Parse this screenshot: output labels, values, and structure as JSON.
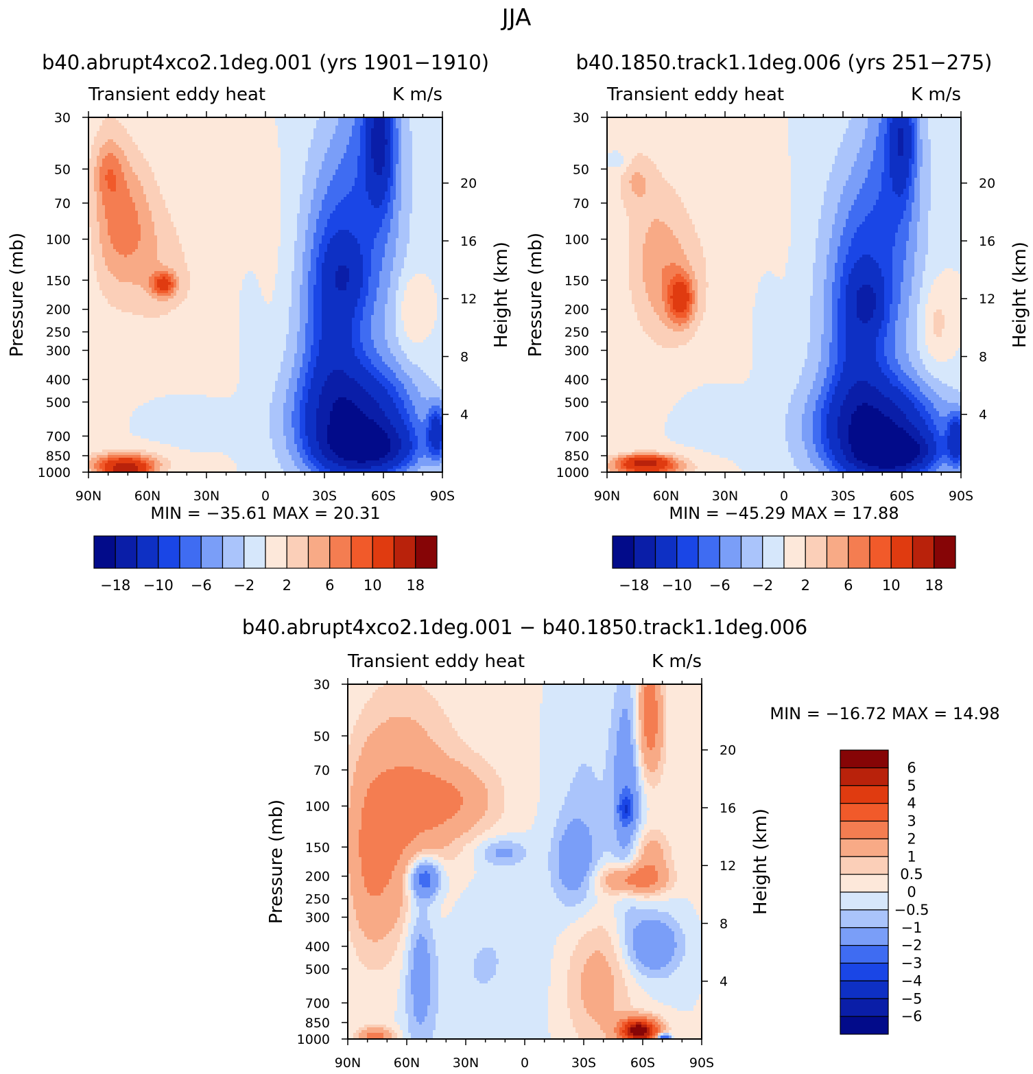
{
  "figure": {
    "title": "JJA"
  },
  "colors": {
    "neg": [
      "#020b8a",
      "#0a1ea8",
      "#0e30c4",
      "#1a46e6",
      "#3f6cf2",
      "#7a9ef8",
      "#aac4fb",
      "#d6e7fb"
    ],
    "pos": [
      "#fde8da",
      "#fbcfb8",
      "#f8aa86",
      "#f47d51",
      "#f15a2a",
      "#e03b10",
      "#b9220b",
      "#860506"
    ]
  },
  "chart_data": [
    {
      "type": "heatmap",
      "id": "p1",
      "title": "b40.abrupt4xco2.1deg.001 (yrs 1901−1910)",
      "left_label": "Transient eddy heat",
      "right_label": "K m/s",
      "xlabel": "",
      "ylabel": "Pressure (mb)",
      "y2label": "Height (km)",
      "x_ticks": [
        "90N",
        "60N",
        "30N",
        "0",
        "30S",
        "60S",
        "90S"
      ],
      "y_ticks": [
        "30",
        "50",
        "70",
        "100",
        "150",
        "200",
        "250",
        "300",
        "400",
        "500",
        "700",
        "850",
        "1000"
      ],
      "y2_ticks": [
        "20",
        "16",
        "12",
        "8",
        "4"
      ],
      "minmax_text": "MIN = −35.61   MAX =  20.31",
      "colorbar_labels": [
        "−18",
        "−10",
        "−6",
        "−2",
        "2",
        "6",
        "10",
        "18"
      ],
      "levels": [
        -18,
        -14,
        -10,
        -8,
        -6,
        -4,
        -2,
        0,
        2,
        4,
        6,
        8,
        10,
        14,
        18
      ],
      "min": -35.61,
      "max": 20.31
    },
    {
      "type": "heatmap",
      "id": "p2",
      "title": "b40.1850.track1.1deg.006 (yrs 251−275)",
      "left_label": "Transient eddy heat",
      "right_label": "K m/s",
      "xlabel": "",
      "ylabel": "Pressure (mb)",
      "y2label": "Height (km)",
      "x_ticks": [
        "90N",
        "60N",
        "30N",
        "0",
        "30S",
        "60S",
        "90S"
      ],
      "y_ticks": [
        "30",
        "50",
        "70",
        "100",
        "150",
        "200",
        "250",
        "300",
        "400",
        "500",
        "700",
        "850",
        "1000"
      ],
      "y2_ticks": [
        "20",
        "16",
        "12",
        "8",
        "4"
      ],
      "minmax_text": "MIN = −45.29   MAX =  17.88",
      "colorbar_labels": [
        "−18",
        "−10",
        "−6",
        "−2",
        "2",
        "6",
        "10",
        "18"
      ],
      "levels": [
        -18,
        -14,
        -10,
        -8,
        -6,
        -4,
        -2,
        0,
        2,
        4,
        6,
        8,
        10,
        14,
        18
      ],
      "min": -45.29,
      "max": 17.88
    },
    {
      "type": "heatmap",
      "id": "p3",
      "title": "b40.abrupt4xco2.1deg.001 − b40.1850.track1.1deg.006",
      "left_label": "Transient eddy heat",
      "right_label": "K m/s",
      "xlabel": "",
      "ylabel": "Pressure (mb)",
      "y2label": "Height (km)",
      "x_ticks": [
        "90N",
        "60N",
        "30N",
        "0",
        "30S",
        "60S",
        "90S"
      ],
      "y_ticks": [
        "30",
        "50",
        "70",
        "100",
        "150",
        "200",
        "250",
        "300",
        "400",
        "500",
        "700",
        "850",
        "1000"
      ],
      "y2_ticks": [
        "20",
        "16",
        "12",
        "8",
        "4"
      ],
      "minmax_text": "MIN = −16.72   MAX =   14.98",
      "colorbar_labels": [
        "6",
        "5",
        "4",
        "3",
        "2",
        "1",
        "0.5",
        "0",
        "−0.5",
        "−1",
        "−2",
        "−3",
        "−4",
        "−5",
        "−6"
      ],
      "levels": [
        -6,
        -5,
        -4,
        -3,
        -2,
        -1,
        -0.5,
        0,
        0.5,
        1,
        2,
        3,
        4,
        5,
        6
      ],
      "min": -16.72,
      "max": 14.98
    }
  ]
}
